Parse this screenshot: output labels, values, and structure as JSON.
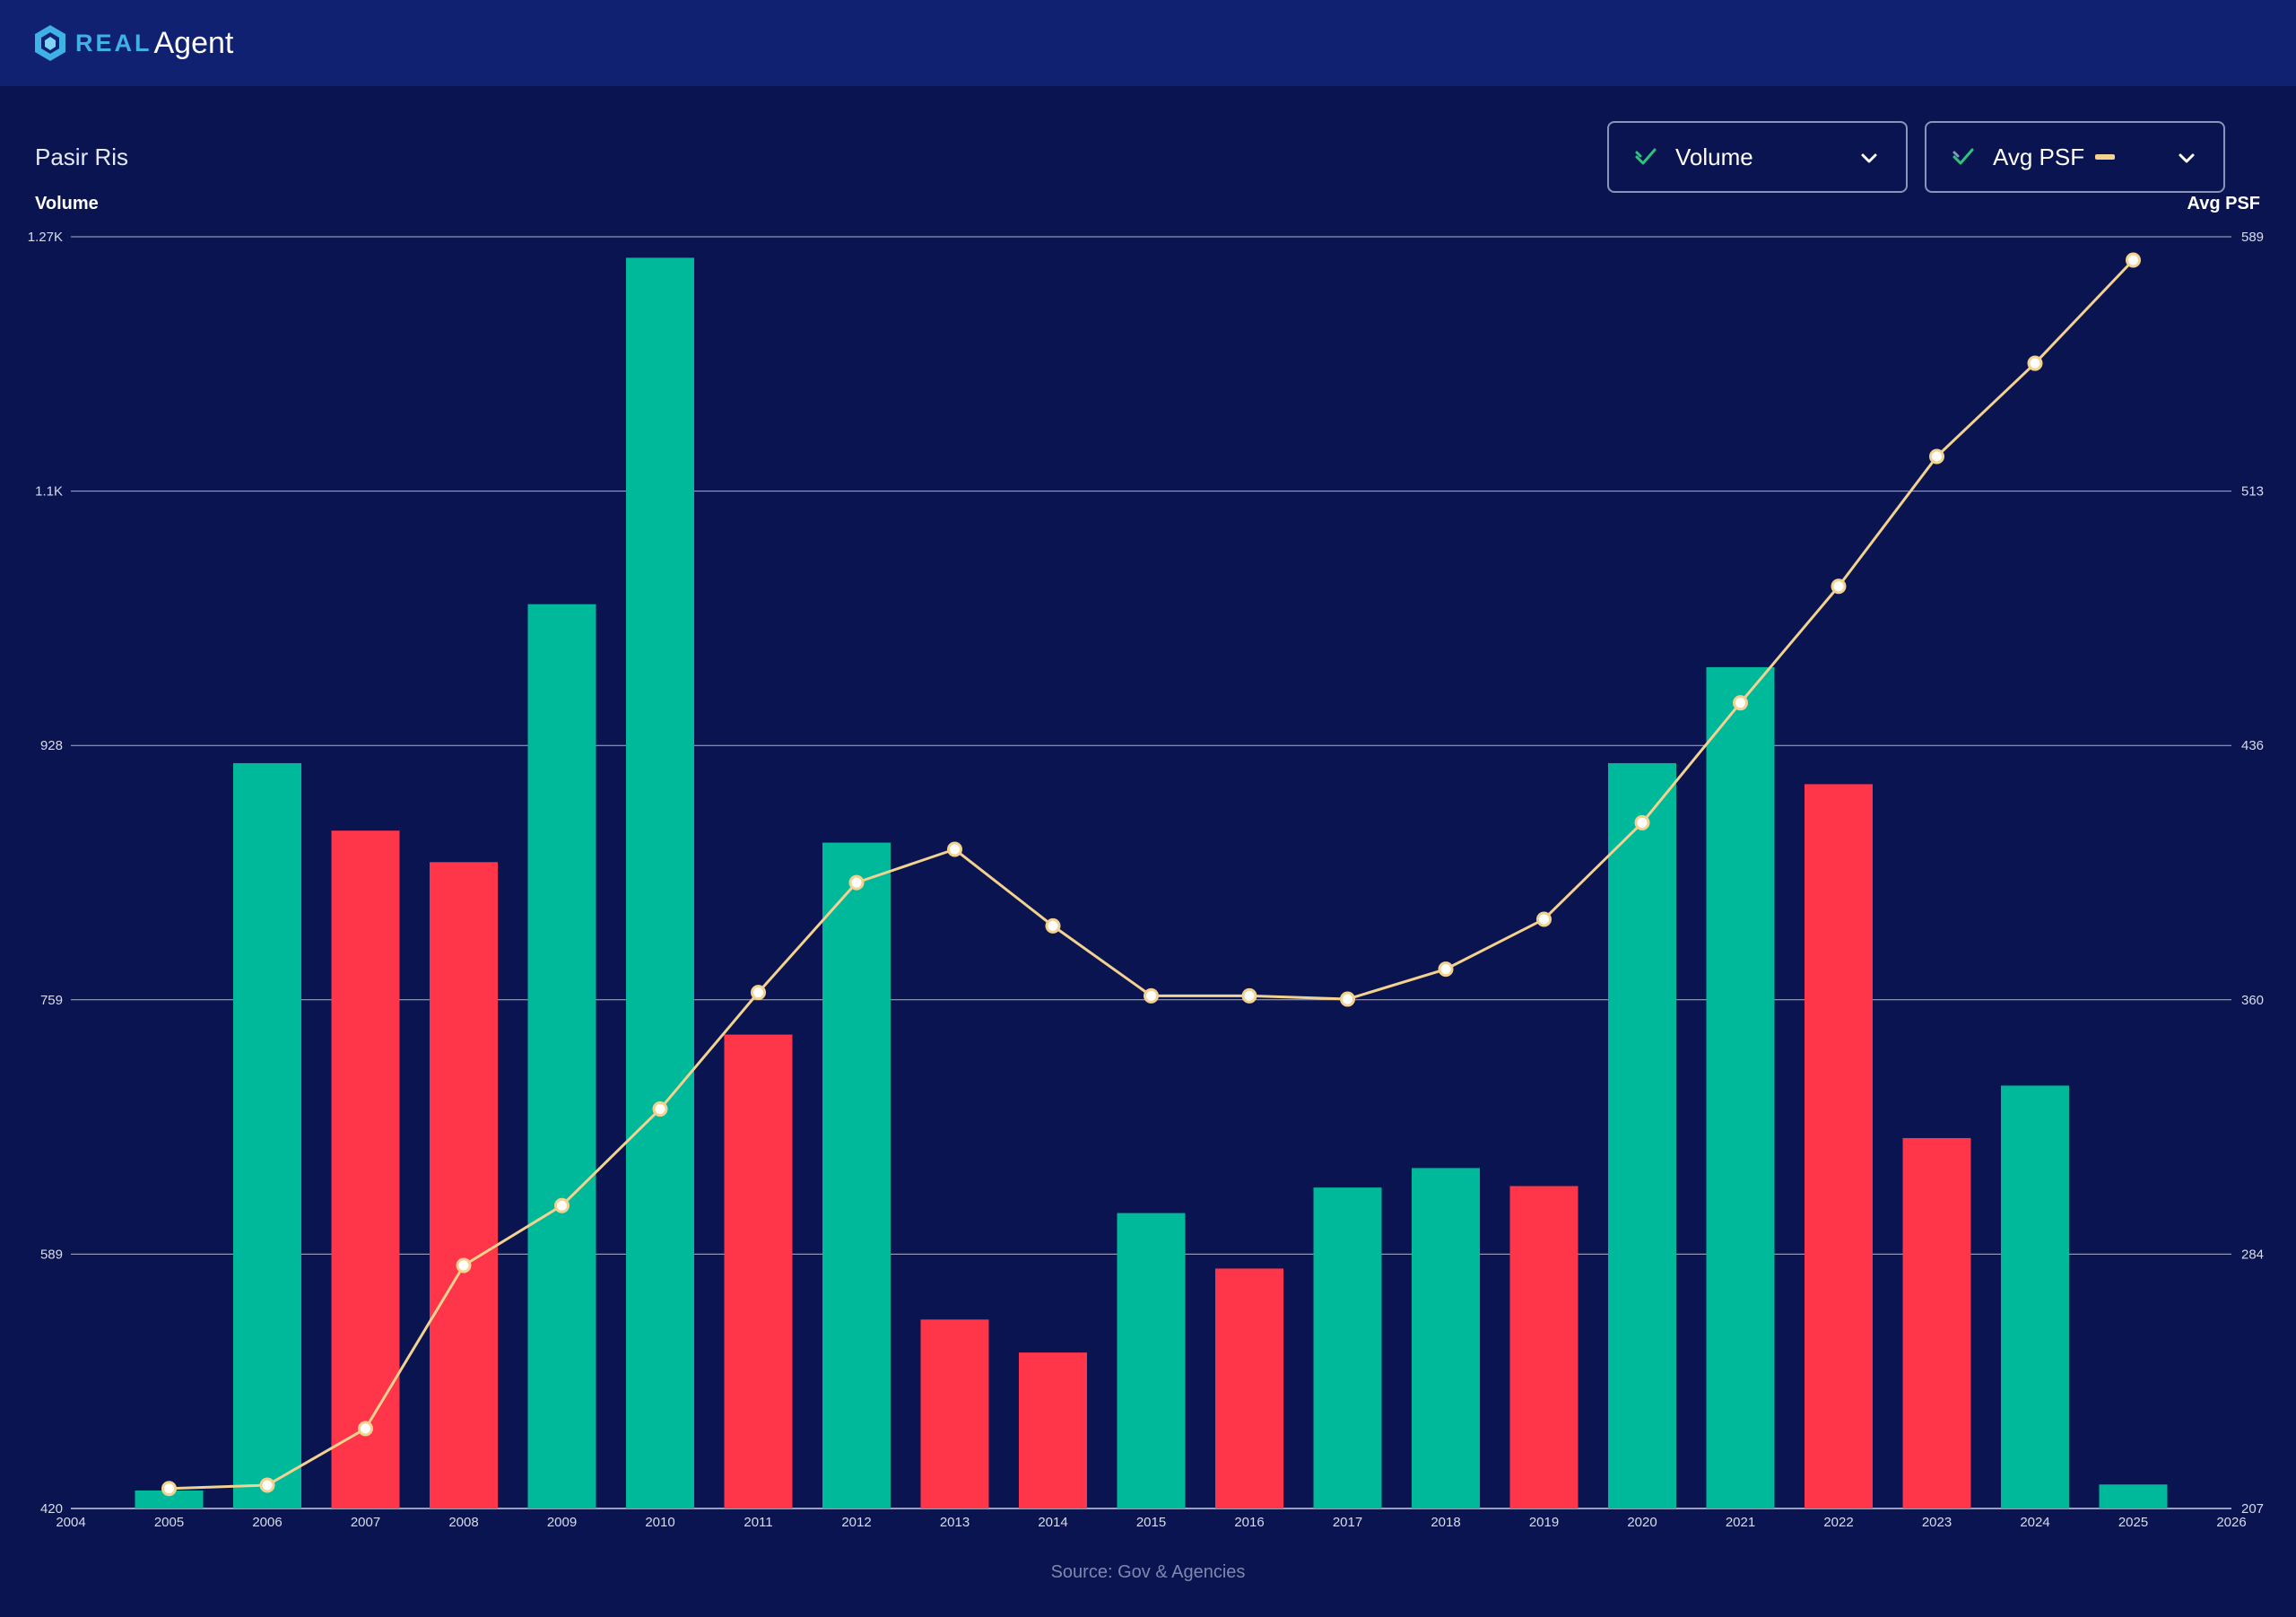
{
  "header": {
    "brand_part1": "REAL",
    "brand_part2": "Agent"
  },
  "chart_title": "Pasir Ris",
  "controls": {
    "volume_label": "Volume",
    "psf_label": "Avg PSF"
  },
  "footer": {
    "source": "Source: Gov & Agencies"
  },
  "colors": {
    "background": "#0a1450",
    "header": "#0f2170",
    "up_bar": "#00b89a",
    "down_bar": "#ff354a",
    "line": "#f3d28f"
  },
  "chart_data": {
    "type": "bar",
    "xlabel": "",
    "ylabel": "Volume",
    "y2label": "Avg PSF",
    "x_ticks": [
      "2004",
      "2005",
      "2006",
      "2007",
      "2008",
      "2009",
      "2010",
      "2011",
      "2012",
      "2013",
      "2014",
      "2015",
      "2016",
      "2017",
      "2018",
      "2019",
      "2020",
      "2021",
      "2022",
      "2023",
      "2024",
      "2025",
      "2026"
    ],
    "y_ticks": [
      "420",
      "589",
      "759",
      "928",
      "1.1K",
      "1.27K"
    ],
    "y2_ticks": [
      "207",
      "284",
      "360",
      "436",
      "513",
      "589"
    ],
    "ylim": [
      420,
      1268
    ],
    "y2lim": [
      207,
      589
    ],
    "grid": true,
    "categories": [
      "2005",
      "2006",
      "2007",
      "2008",
      "2009",
      "2010",
      "2011",
      "2012",
      "2013",
      "2014",
      "2015",
      "2016",
      "2017",
      "2018",
      "2019",
      "2020",
      "2021",
      "2022",
      "2023",
      "2024",
      "2025"
    ],
    "series": [
      {
        "name": "Volume",
        "type": "bar",
        "values": [
          432,
          917,
          872,
          851,
          1023,
          1254,
          736,
          864,
          546,
          524,
          617,
          580,
          634,
          647,
          635,
          917,
          981,
          903,
          667,
          702,
          436
        ],
        "direction": [
          "up",
          "up",
          "down",
          "down",
          "up",
          "up",
          "down",
          "up",
          "down",
          "down",
          "up",
          "down",
          "up",
          "up",
          "down",
          "up",
          "up",
          "down",
          "down",
          "up",
          "up"
        ]
      },
      {
        "name": "Avg PSF",
        "type": "line",
        "values": [
          213,
          214,
          231,
          280,
          298,
          327,
          362,
          395,
          405,
          382,
          361,
          361,
          360,
          369,
          384,
          413,
          449,
          484,
          523,
          551,
          582
        ]
      }
    ]
  }
}
